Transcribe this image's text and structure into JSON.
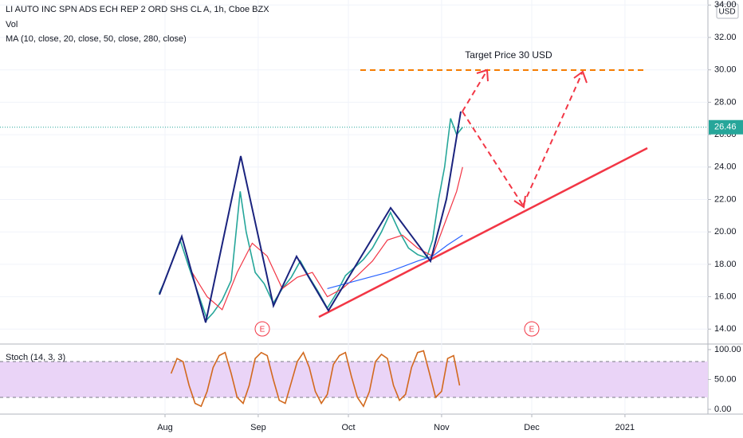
{
  "chart_data": [
    {
      "type": "line",
      "title": "LI AUTO INC SPN ADS ECH REP 2 ORD SHS CL A, 1h, Cboe BZX",
      "subtitle": "Vol",
      "indicator": "MA (10, close, 20, close, 50, close, 280, close)",
      "annotation": "Target Price 30 USD",
      "currency": "USD",
      "event_markers": [
        "E",
        "E"
      ],
      "xlim": [
        -23.9,
        211.6
      ],
      "xticks": [
        {
          "value": 31,
          "label": "Aug"
        },
        {
          "value": 62,
          "label": "Sep"
        },
        {
          "value": 92,
          "label": "Oct"
        },
        {
          "value": 123,
          "label": "Nov"
        },
        {
          "value": 153,
          "label": "Dec"
        },
        {
          "value": 184,
          "label": "2021"
        }
      ],
      "ylim": [
        13.08,
        34.31
      ],
      "yticks": [
        {
          "value": 14,
          "label": "14.00"
        },
        {
          "value": 16,
          "label": "16.00"
        },
        {
          "value": 18,
          "label": "18.00"
        },
        {
          "value": 20,
          "label": "20.00"
        },
        {
          "value": 22,
          "label": "22.00"
        },
        {
          "value": 24,
          "label": "24.00"
        },
        {
          "value": 26,
          "label": "26.00"
        },
        {
          "value": 28,
          "label": "28.00"
        },
        {
          "value": 30,
          "label": "30.00"
        },
        {
          "value": 32,
          "label": "32.00"
        },
        {
          "value": 34,
          "label": "34.00"
        }
      ],
      "grid": true,
      "series": [
        {
          "color": "#26a69a",
          "x": [
            29,
            31,
            33,
            36,
            39,
            42,
            45,
            47,
            50,
            53,
            56,
            58,
            61,
            64,
            67,
            70,
            73,
            76,
            79,
            82,
            85,
            88,
            91,
            94,
            97,
            100,
            103,
            106,
            109,
            112,
            115,
            118,
            120,
            122,
            124,
            126,
            128,
            130
          ],
          "values": [
            16.2,
            17.0,
            18.0,
            19.5,
            17.8,
            16.2,
            14.6,
            15.0,
            15.8,
            17.0,
            22.5,
            20.0,
            17.5,
            16.8,
            15.6,
            16.5,
            17.2,
            18.2,
            17.2,
            16.3,
            15.3,
            16.2,
            17.3,
            17.8,
            18.3,
            19.0,
            20.0,
            21.2,
            20.0,
            19.0,
            18.6,
            18.4,
            19.5,
            22.0,
            24.0,
            27.0,
            26.0,
            26.46
          ]
        },
        {
          "color": "#f23645",
          "x": [
            40,
            45,
            50,
            55,
            60,
            65,
            70,
            75,
            80,
            85,
            90,
            95,
            100,
            105,
            110,
            115,
            120,
            124,
            128,
            130
          ],
          "values": [
            17.5,
            16.0,
            15.2,
            17.5,
            19.3,
            18.5,
            16.5,
            17.2,
            17.5,
            16.0,
            16.5,
            17.3,
            18.2,
            19.5,
            19.8,
            19.0,
            18.5,
            20.5,
            22.5,
            24.0
          ]
        },
        {
          "color": "#2962ff",
          "x": [
            85,
            95,
            105,
            115,
            120,
            125,
            130
          ],
          "values": [
            16.5,
            17.0,
            17.5,
            18.2,
            18.5,
            19.2,
            19.8
          ]
        }
      ]
    },
    {
      "type": "line",
      "title": "Stoch (14, 3, 3)",
      "xlim": [
        -23.9,
        211.6
      ],
      "ylim": [
        -8,
        109.3
      ],
      "yticks": [
        {
          "value": 0,
          "label": "0.00"
        },
        {
          "value": 50,
          "label": "50.00"
        },
        {
          "value": 100,
          "label": "100.00"
        }
      ],
      "bands": [
        20,
        80
      ],
      "band_color": "#ead4f7",
      "series": [
        {
          "color": "#d2691e",
          "x": [
            33,
            35,
            37,
            39,
            41,
            43,
            45,
            47,
            49,
            51,
            53,
            55,
            57,
            59,
            61,
            63,
            65,
            67,
            69,
            71,
            73,
            75,
            77,
            79,
            81,
            83,
            85,
            87,
            89,
            91,
            93,
            95,
            97,
            99,
            101,
            103,
            105,
            107,
            109,
            111,
            113,
            115,
            117,
            119,
            121,
            123,
            125,
            127,
            129
          ],
          "values": [
            60,
            85,
            80,
            40,
            10,
            5,
            30,
            70,
            90,
            95,
            60,
            20,
            10,
            40,
            85,
            95,
            90,
            50,
            15,
            10,
            45,
            80,
            95,
            70,
            30,
            10,
            25,
            75,
            90,
            95,
            55,
            20,
            5,
            30,
            80,
            92,
            85,
            40,
            15,
            25,
            70,
            95,
            98,
            60,
            20,
            30,
            85,
            90,
            40
          ]
        }
      ]
    }
  ]
}
